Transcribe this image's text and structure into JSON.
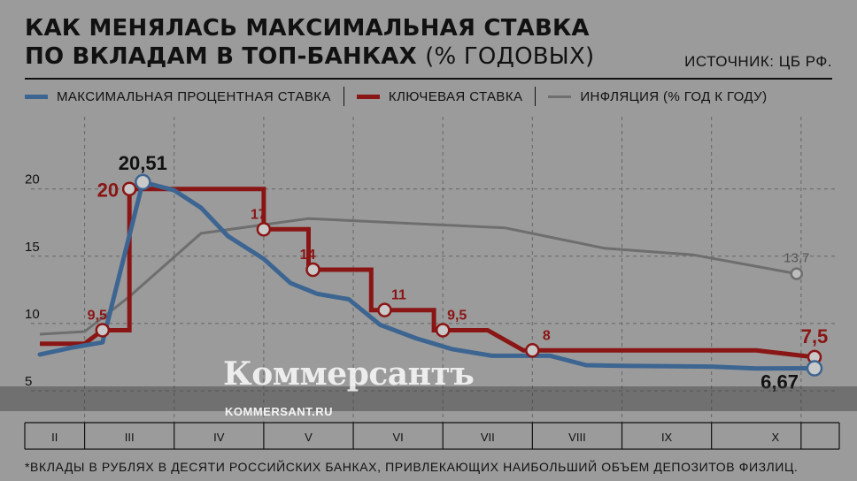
{
  "header": {
    "title_line1": "КАК МЕНЯЛАСЬ МАКСИМАЛЬНАЯ СТАВКА",
    "title_line2": "ПО ВКЛАДАМ В ТОП-БАНКАХ",
    "title_paren": "(% ГОДОВЫХ)",
    "source": "ИСТОЧНИК: ЦБ РФ."
  },
  "legend": [
    {
      "label": "МАКСИМАЛЬНАЯ ПРОЦЕНТНАЯ СТАВКА",
      "color": "#3d6591"
    },
    {
      "label": "КЛЮЧЕВАЯ СТАВКА",
      "color": "#8a1515"
    },
    {
      "label": "ИНФЛЯЦИЯ (% ГОД К ГОДУ)",
      "color": "#6e6e6e"
    }
  ],
  "footnote": "*ВКЛАДЫ В РУБЛЯХ В ДЕСЯТИ РОССИЙСКИХ БАНКАХ, ПРИВЛЕКАЮЩИХ НАИБОЛЬШИЙ ОБЪЕМ ДЕПОЗИТОВ ФИЗЛИЦ.",
  "watermark": {
    "logo": "Коммерсантъ",
    "url": "KOMMERSANT.RU"
  },
  "chart_data": {
    "type": "line",
    "title": "КАК МЕНЯЛАСЬ МАКСИМАЛЬНАЯ СТАВКА ПО ВКЛАДАМ В ТОП-БАНКАХ (% ГОДОВЫХ)",
    "x_unit": "месяц (II–X)",
    "months": [
      "II",
      "III",
      "IV",
      "V",
      "VI",
      "VII",
      "VIII",
      "IX",
      "X"
    ],
    "month_range": [
      1.5,
      10.15
    ],
    "y_ticks": [
      5,
      10,
      15,
      20
    ],
    "ylim": [
      2.5,
      25.5
    ],
    "grid": "vertical dashed at month boundaries, horizontal dashed at y ticks",
    "series": [
      {
        "name": "МАКСИМАЛЬНАЯ ПРОЦЕНТНАЯ СТАВКА",
        "color": "#3d6591",
        "points": [
          [
            1.5,
            7.7
          ],
          [
            1.85,
            8.2
          ],
          [
            2.2,
            8.6
          ],
          [
            2.65,
            20.51
          ],
          [
            3.0,
            19.9
          ],
          [
            3.3,
            18.6
          ],
          [
            3.6,
            16.5
          ],
          [
            4.0,
            14.8
          ],
          [
            4.3,
            13.0
          ],
          [
            4.6,
            12.2
          ],
          [
            4.95,
            11.8
          ],
          [
            5.3,
            9.9
          ],
          [
            5.7,
            8.9
          ],
          [
            6.1,
            8.1
          ],
          [
            6.55,
            7.6
          ],
          [
            7.2,
            7.6
          ],
          [
            7.6,
            6.9
          ],
          [
            8.0,
            6.85
          ],
          [
            9.0,
            6.8
          ],
          [
            9.5,
            6.65
          ],
          [
            10.15,
            6.67
          ]
        ],
        "labels": [
          {
            "x": 2.65,
            "y": 20.51,
            "text": "20,51",
            "pos": "above"
          },
          {
            "x": 10.15,
            "y": 6.67,
            "text": "6,67",
            "pos": "left-below"
          }
        ]
      },
      {
        "name": "КЛЮЧЕВАЯ СТАВКА",
        "color": "#8a1515",
        "points": [
          [
            1.5,
            8.5
          ],
          [
            2.0,
            8.5
          ],
          [
            2.2,
            9.5
          ],
          [
            2.5,
            9.5
          ],
          [
            2.5,
            20
          ],
          [
            4.0,
            20
          ],
          [
            4.0,
            17
          ],
          [
            4.5,
            17
          ],
          [
            4.5,
            14
          ],
          [
            5.2,
            14
          ],
          [
            5.2,
            11
          ],
          [
            5.9,
            11
          ],
          [
            5.9,
            9.5
          ],
          [
            6.5,
            9.5
          ],
          [
            6.9,
            8
          ],
          [
            9.5,
            8
          ],
          [
            10.15,
            7.5
          ]
        ],
        "markers": [
          {
            "x": 2.2,
            "y": 9.5,
            "label": "9,5",
            "label_pos": "above-left"
          },
          {
            "x": 2.5,
            "y": 20,
            "label": "20",
            "label_pos": "left"
          },
          {
            "x": 4.0,
            "y": 17,
            "label": "17",
            "label_pos": "above-left"
          },
          {
            "x": 4.55,
            "y": 14,
            "label": "14",
            "label_pos": "above-left"
          },
          {
            "x": 5.35,
            "y": 11,
            "label": "11",
            "label_pos": "above-right"
          },
          {
            "x": 6.0,
            "y": 9.5,
            "label": "9,5",
            "label_pos": "above-right"
          },
          {
            "x": 7.0,
            "y": 8,
            "label": "8",
            "label_pos": "above-right"
          },
          {
            "x": 10.15,
            "y": 7.5,
            "label": "7,5",
            "label_pos": "above"
          }
        ]
      },
      {
        "name": "ИНФЛЯЦИЯ (% ГОД К ГОДУ)",
        "color": "#6e6e6e",
        "points": [
          [
            1.5,
            9.2
          ],
          [
            2.0,
            9.4
          ],
          [
            2.5,
            12.0
          ],
          [
            3.3,
            16.7
          ],
          [
            4.5,
            17.8
          ],
          [
            6.7,
            17.1
          ],
          [
            7.8,
            15.6
          ],
          [
            8.8,
            15.1
          ],
          [
            9.95,
            13.7
          ]
        ],
        "end_label": {
          "x": 9.95,
          "y": 13.7,
          "text": "13,7"
        }
      }
    ]
  }
}
